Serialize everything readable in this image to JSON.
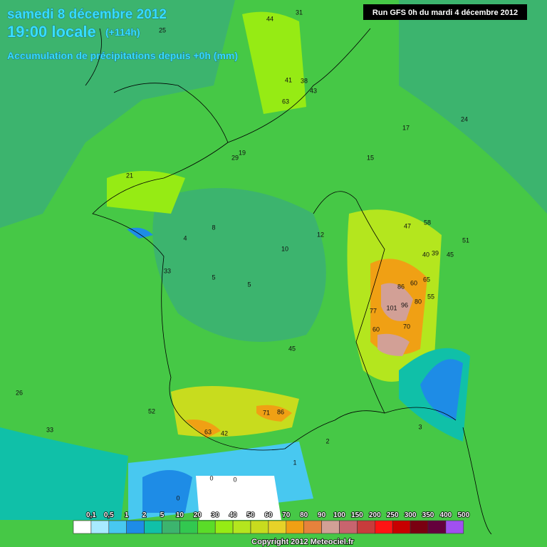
{
  "header": {
    "date": "samedi 8 décembre 2012",
    "time": "19:00 locale",
    "lead": "(+114h)",
    "subtitle": "Accumulation de précipitations depuis +0h (mm)",
    "run": "Run GFS 0h du mardi 4 décembre 2012"
  },
  "legend": {
    "labels": [
      "0,1",
      "0,5",
      "1",
      "2",
      "5",
      "10",
      "20",
      "30",
      "40",
      "50",
      "60",
      "70",
      "80",
      "90",
      "100",
      "150",
      "200",
      "250",
      "300",
      "350",
      "400",
      "500"
    ],
    "colors": [
      "#ffffff",
      "#a8eaff",
      "#48c8f0",
      "#1e8ce6",
      "#10c0a8",
      "#3cb46e",
      "#32c850",
      "#5adc28",
      "#96eb14",
      "#b4e61e",
      "#c8dc1e",
      "#e6d228",
      "#f0a014",
      "#e6823c",
      "#d2a096",
      "#c8646e",
      "#c83c3c",
      "#ff1414",
      "#c80000",
      "#7a0010",
      "#64003c",
      "#a050f0"
    ]
  },
  "map_labels": [
    101,
    96,
    86,
    60,
    80,
    77,
    60,
    70,
    65,
    55,
    71,
    86,
    63,
    52,
    45,
    42,
    44,
    43,
    41,
    38,
    63,
    58,
    39,
    45,
    33,
    31,
    29,
    25,
    21,
    19,
    17,
    15,
    12,
    10,
    8,
    5,
    5,
    4,
    3,
    2,
    1,
    0,
    0,
    0,
    24,
    33,
    26,
    47,
    51,
    40
  ],
  "copyright": "Copyright 2012 Meteociel.fr"
}
